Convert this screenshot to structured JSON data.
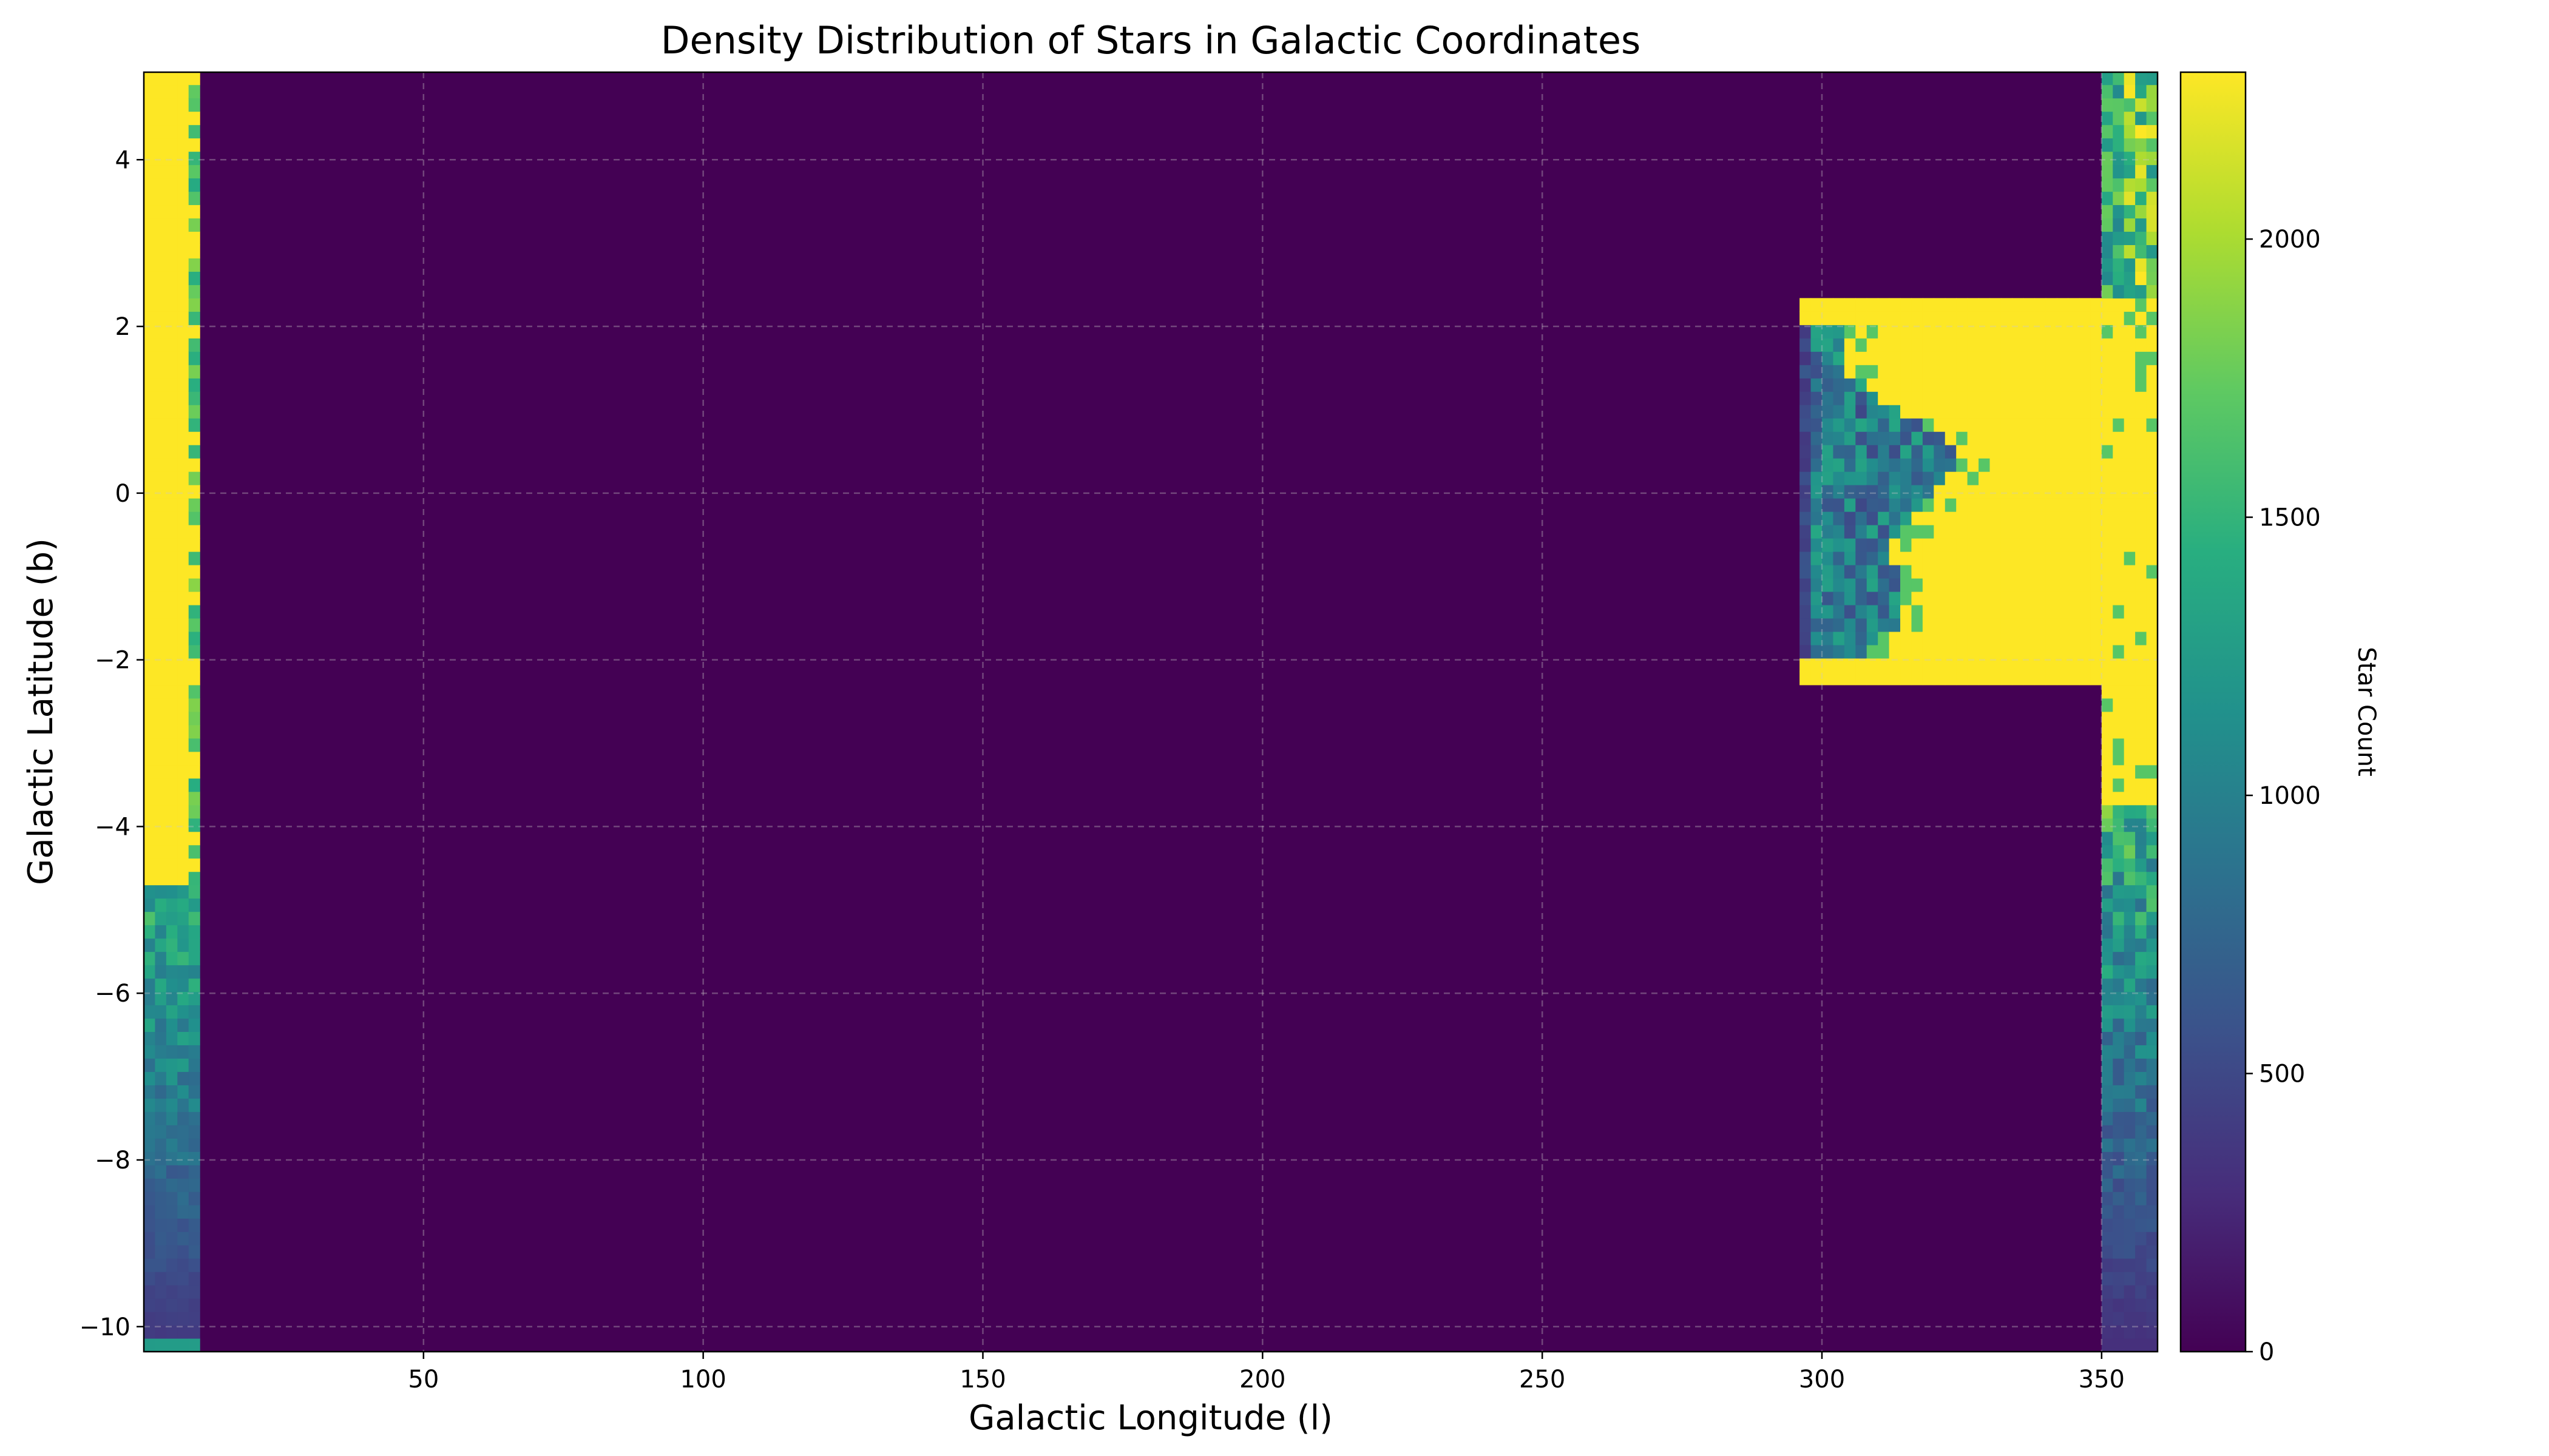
{
  "chart_data": {
    "type": "heatmap",
    "title": "Density Distribution of Stars in Galactic Coordinates",
    "xlabel": "Galactic Longitude (l)",
    "ylabel": "Galactic Latitude (b)",
    "colorbar_label": "Star Count",
    "colormap": "viridis",
    "xlim": [
      0,
      360
    ],
    "ylim": [
      -10.3,
      5.05
    ],
    "clim": [
      0,
      2300
    ],
    "x_ticks": [
      50,
      100,
      150,
      200,
      250,
      300,
      350
    ],
    "y_ticks": [
      -10,
      -8,
      -6,
      -4,
      -2,
      0,
      2,
      4
    ],
    "colorbar_ticks": [
      0,
      500,
      1000,
      1500,
      2000
    ],
    "grid": true,
    "grid_style": "dashed",
    "cell_size": {
      "l": 2.0,
      "b": 0.16
    },
    "regions": [
      {
        "name": "left-edge band",
        "l_range": [
          0,
          10
        ],
        "b_range": [
          -4.7,
          5.05
        ],
        "star_count": 2300,
        "inner_edge_count": 1600
      },
      {
        "name": "left-edge low-latitude band",
        "l_range": [
          0,
          10
        ],
        "b_range": [
          -10.3,
          -4.7
        ],
        "star_count_range": [
          400,
          1600
        ]
      },
      {
        "name": "right-edge band",
        "l_range": [
          350,
          360
        ],
        "b_range": [
          -3.7,
          2.3
        ],
        "star_count": 2300
      },
      {
        "name": "right-edge upper band",
        "l_range": [
          350,
          360
        ],
        "b_range": [
          2.3,
          5.05
        ],
        "star_count_range": [
          700,
          2300
        ]
      },
      {
        "name": "right-edge lower band",
        "l_range": [
          350,
          360
        ],
        "b_range": [
          -10.3,
          -3.7
        ],
        "star_count_range": [
          300,
          1700
        ]
      },
      {
        "name": "central bulge",
        "l_range": [
          295,
          350
        ],
        "b_range": [
          -2.3,
          2.3
        ],
        "star_count": 2300
      },
      {
        "name": "bulge inner structure",
        "l_range": [
          295,
          325
        ],
        "b_range": [
          -2.0,
          2.0
        ],
        "star_count_range": [
          400,
          1400
        ]
      },
      {
        "name": "background",
        "l_range": [
          10,
          350
        ],
        "b_range": [
          -10.3,
          5.05
        ],
        "star_count": 0
      }
    ]
  }
}
